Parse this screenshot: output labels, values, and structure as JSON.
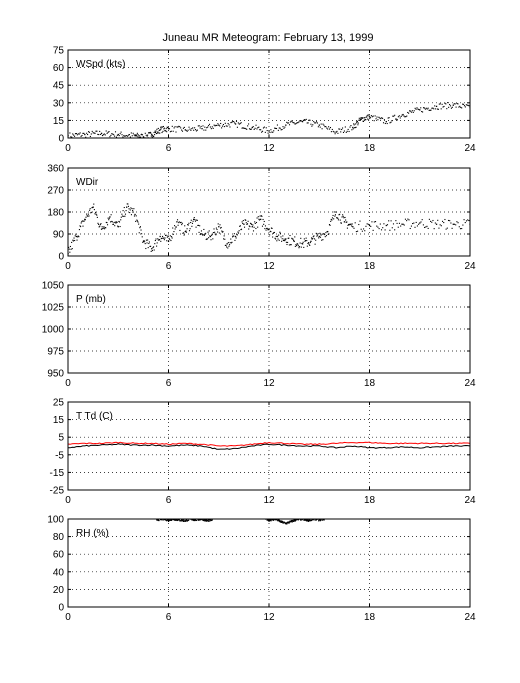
{
  "title": "Juneau MR Meteogram:  February 13, 1999",
  "colors": {
    "primary": "#000000",
    "secondary": "#ff0000",
    "grid": "#000000",
    "background": "#ffffff"
  },
  "chart_data": [
    {
      "id": "wspd",
      "type": "scatter",
      "label": "WSpd (kts)",
      "xlim": [
        0,
        24
      ],
      "xticks": [
        0,
        6,
        12,
        18,
        24
      ],
      "ylim": [
        0,
        75
      ],
      "yticks": [
        0,
        15,
        30,
        45,
        60,
        75
      ],
      "grid": true,
      "series": [
        {
          "color": "#000000",
          "style": "dots",
          "x": [
            0,
            1,
            2,
            3,
            4,
            4.5,
            5,
            5.5,
            6,
            7,
            8,
            9,
            10,
            11,
            12,
            13,
            14,
            15,
            16,
            17,
            17.5,
            18,
            19,
            20,
            21,
            22,
            23,
            24
          ],
          "y": [
            2,
            3,
            4,
            3,
            2,
            1,
            3,
            7,
            8,
            7,
            8,
            11,
            12,
            9,
            6,
            11,
            14,
            11,
            5,
            9,
            16,
            18,
            14,
            20,
            24,
            27,
            28,
            26
          ]
        }
      ]
    },
    {
      "id": "wdir",
      "type": "scatter",
      "label": "WDir",
      "xlim": [
        0,
        24
      ],
      "xticks": [
        0,
        6,
        12,
        18,
        24
      ],
      "ylim": [
        0,
        360
      ],
      "yticks": [
        0,
        90,
        180,
        270,
        360
      ],
      "grid": true,
      "series": [
        {
          "color": "#000000",
          "style": "dots",
          "x": [
            0,
            0.5,
            1,
            1.5,
            2,
            2.5,
            3,
            3.5,
            4,
            4.5,
            5,
            5.5,
            6,
            6.5,
            7,
            7.5,
            8,
            8.5,
            9,
            9.5,
            10,
            10.5,
            11,
            11.5,
            12,
            12.5,
            13,
            13.5,
            14,
            14.5,
            15,
            15.5,
            16,
            16.5,
            17,
            18,
            19,
            20,
            21,
            22,
            23,
            24
          ],
          "y": [
            10,
            80,
            150,
            200,
            110,
            160,
            120,
            200,
            170,
            60,
            30,
            80,
            60,
            140,
            100,
            150,
            90,
            80,
            120,
            50,
            80,
            130,
            120,
            150,
            110,
            80,
            70,
            60,
            50,
            60,
            80,
            100,
            180,
            140,
            120,
            125,
            125,
            130,
            135,
            130,
            130,
            130
          ]
        }
      ]
    },
    {
      "id": "pressure",
      "type": "scatter",
      "label": "P (mb)",
      "xlim": [
        0,
        24
      ],
      "xticks": [
        0,
        6,
        12,
        18,
        24
      ],
      "ylim": [
        950,
        1050
      ],
      "yticks": [
        950,
        975,
        1000,
        1025,
        1050
      ],
      "grid": true,
      "series": []
    },
    {
      "id": "ttd",
      "type": "line",
      "label": "T Td (C)",
      "xlim": [
        0,
        24
      ],
      "xticks": [
        0,
        6,
        12,
        18,
        24
      ],
      "ylim": [
        -25,
        25
      ],
      "yticks": [
        -25,
        -15,
        -5,
        5,
        15,
        25
      ],
      "grid": true,
      "series": [
        {
          "color": "#ff0000",
          "style": "line",
          "x": [
            0,
            1,
            2,
            3,
            4,
            5,
            6,
            7,
            8,
            9,
            10,
            11,
            12,
            13,
            14,
            15,
            16,
            17,
            18,
            19,
            20,
            21,
            22,
            23,
            24
          ],
          "y": [
            1,
            1.5,
            1.5,
            2,
            1.5,
            1.5,
            1,
            1.5,
            1,
            0,
            0,
            1,
            2,
            1.5,
            1,
            1,
            1.5,
            2,
            2,
            1.5,
            1.5,
            1.5,
            1.5,
            1.5,
            1.5
          ]
        },
        {
          "color": "#000000",
          "style": "line",
          "x": [
            0,
            1,
            2,
            3,
            4,
            5,
            6,
            7,
            8,
            9,
            10,
            11,
            12,
            13,
            14,
            15,
            16,
            17,
            18,
            19,
            20,
            21,
            22,
            23,
            24
          ],
          "y": [
            -1,
            0,
            0.5,
            1,
            0.5,
            0.5,
            0,
            0.5,
            0,
            -2,
            -1.5,
            0,
            1,
            0.5,
            0,
            0,
            -1,
            0,
            -1,
            -1,
            -0.5,
            -1,
            -0.5,
            0,
            0
          ]
        }
      ]
    },
    {
      "id": "rh",
      "type": "scatter",
      "label": "RH (%)",
      "xlim": [
        0,
        24
      ],
      "xticks": [
        0,
        6,
        12,
        18,
        24
      ],
      "ylim": [
        0,
        100
      ],
      "yticks": [
        0,
        20,
        40,
        60,
        80,
        100
      ],
      "grid": true,
      "series": [
        {
          "color": "#000000",
          "style": "dots",
          "x": [
            5.3,
            5.6,
            6,
            6.3,
            6.6,
            7,
            7.3,
            7.6,
            8,
            8.3,
            8.6,
            11.8,
            12.1,
            12.4,
            12.7,
            13,
            13.3,
            13.6,
            14,
            14.3,
            14.6,
            15,
            15.3
          ],
          "y": [
            99,
            100,
            99,
            100,
            99,
            98,
            100,
            99,
            100,
            98,
            99,
            100,
            99,
            100,
            97,
            95,
            97,
            99,
            100,
            98,
            100,
            99,
            100
          ]
        }
      ]
    }
  ]
}
